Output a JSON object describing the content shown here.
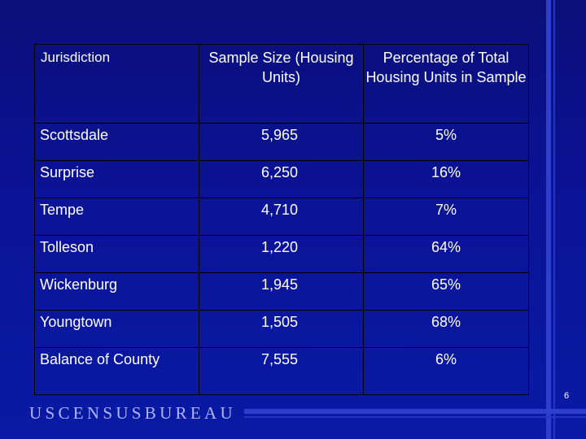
{
  "table": {
    "headers": [
      "Jurisdiction",
      "Sample Size (Housing Units)",
      "Percentage of Total Housing Units in Sample"
    ],
    "rows": [
      {
        "jurisdiction": "Scottsdale",
        "sample_size": "5,965",
        "percentage": "5%"
      },
      {
        "jurisdiction": "Surprise",
        "sample_size": "6,250",
        "percentage": "16%"
      },
      {
        "jurisdiction": "Tempe",
        "sample_size": "4,710",
        "percentage": "7%"
      },
      {
        "jurisdiction": "Tolleson",
        "sample_size": "1,220",
        "percentage": "64%"
      },
      {
        "jurisdiction": "Wickenburg",
        "sample_size": "1,945",
        "percentage": "65%"
      },
      {
        "jurisdiction": "Youngtown",
        "sample_size": "1,505",
        "percentage": "68%"
      },
      {
        "jurisdiction": "Balance of County",
        "sample_size": "7,555",
        "percentage": "6%"
      }
    ]
  },
  "footer": {
    "logo_text": "USCENSUSBUREAU",
    "page_number": "6"
  }
}
